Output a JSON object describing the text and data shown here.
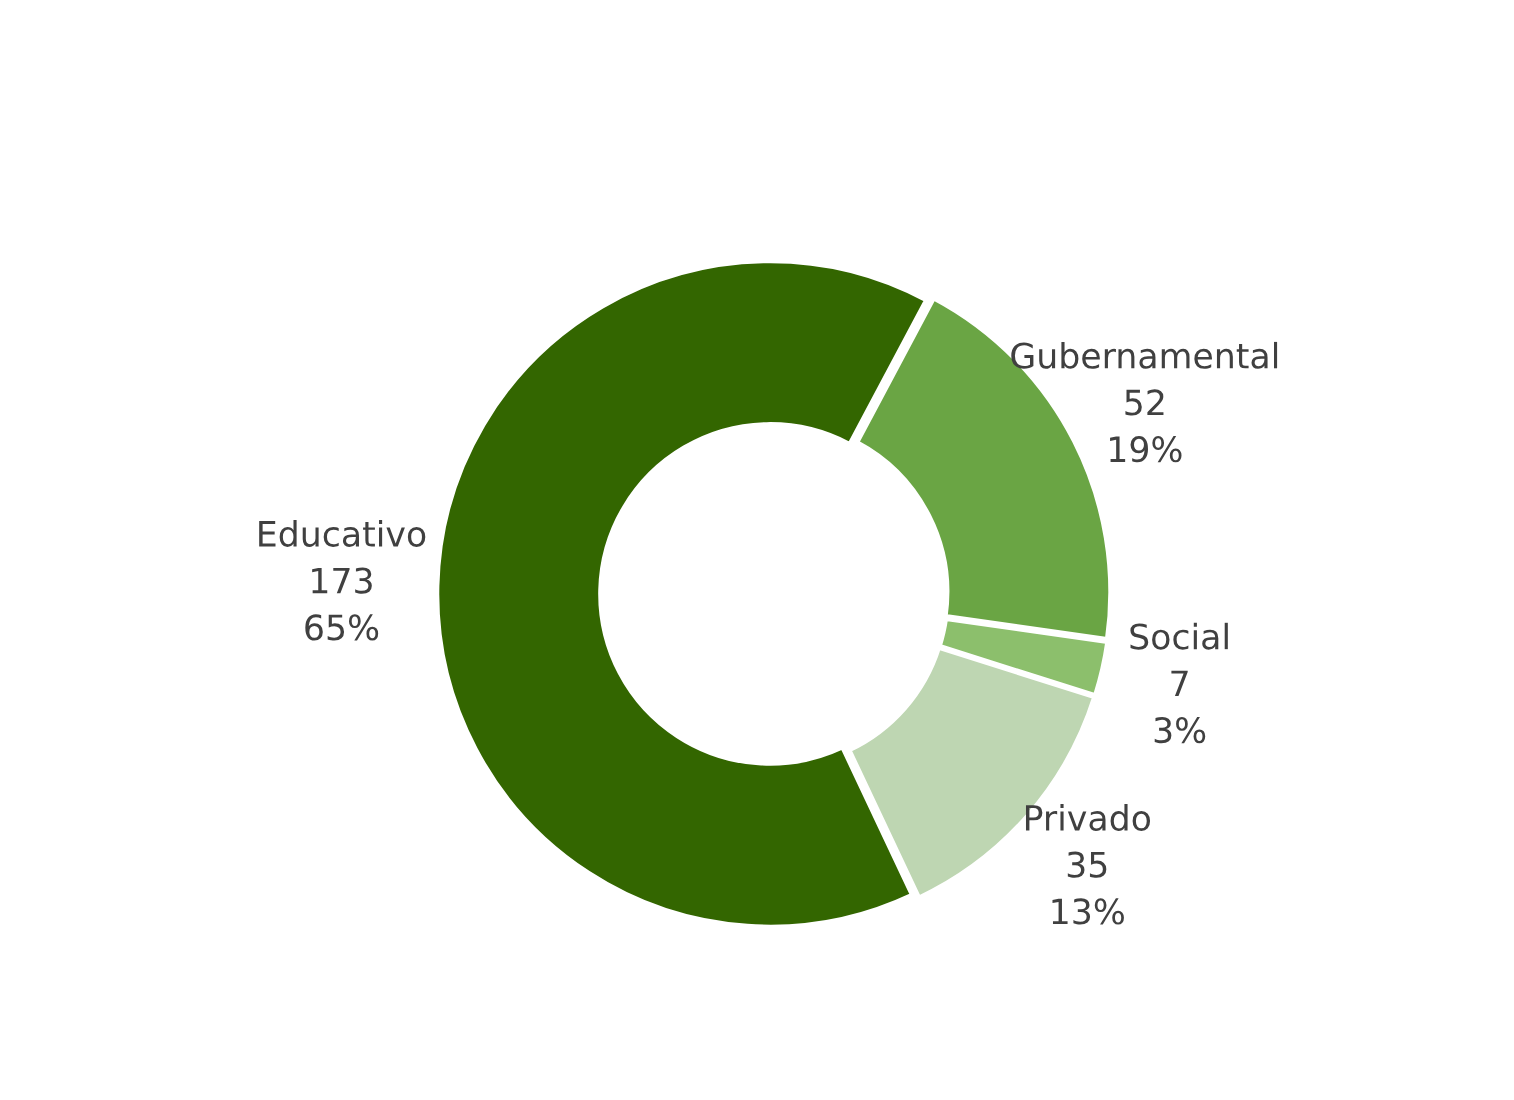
{
  "chart_data": {
    "type": "donut",
    "categories": [
      "Gubernamental",
      "Social",
      "Privado",
      "Educativo"
    ],
    "values": [
      52,
      7,
      35,
      173
    ],
    "colors": [
      "#6aa544",
      "#8cbf6c",
      "#bed6b2",
      "#336600"
    ],
    "value_labels": [
      "52\n19%",
      "7\n3%",
      "35\n13%",
      "173\n65%"
    ],
    "legend": false
  }
}
